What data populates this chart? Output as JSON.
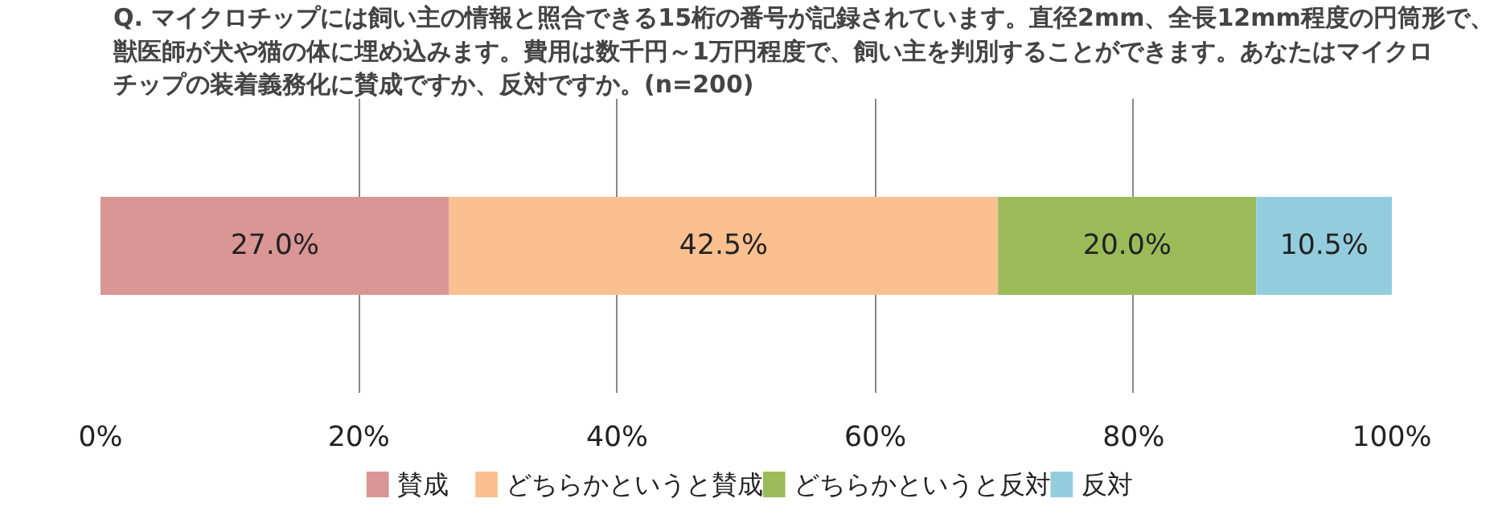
{
  "chart_data": {
    "type": "bar",
    "orientation": "horizontal",
    "stacked": true,
    "title": "Q. マイクロチップには飼い主の情報と照合できる15桁の番号が記録されています。直径2mm、全長12mm程度の円筒形で、獣医師が犬や猫の体に埋め込みます。費用は数千円～1万円程度で、飼い主を判別することができます。あなたはマイクロチップの装着義務化に賛成ですか、反対ですか。(n=200)",
    "categories": [
      null
    ],
    "series": [
      {
        "name": "賛成",
        "color": "#d99694",
        "values": [
          27.0
        ],
        "value_labels": [
          "27.0%"
        ]
      },
      {
        "name": "どちらかというと賛成",
        "color": "#fac090",
        "values": [
          42.5
        ],
        "value_labels": [
          "42.5%"
        ]
      },
      {
        "name": "どちらかというと反対",
        "color": "#9bbb59",
        "values": [
          20.0
        ],
        "value_labels": [
          "20.0%"
        ]
      },
      {
        "name": "反対",
        "color": "#93cddd",
        "values": [
          10.5
        ],
        "value_labels": [
          "10.5%"
        ]
      }
    ],
    "xlim": [
      0,
      100
    ],
    "xticks": [
      {
        "value": 0,
        "label": "0%"
      },
      {
        "value": 20,
        "label": "20%"
      },
      {
        "value": 40,
        "label": "40%"
      },
      {
        "value": 60,
        "label": "60%"
      },
      {
        "value": 80,
        "label": "80%"
      },
      {
        "value": 100,
        "label": "100%"
      }
    ],
    "grid": "x",
    "legend": "bottom",
    "tick_labels": "x"
  }
}
